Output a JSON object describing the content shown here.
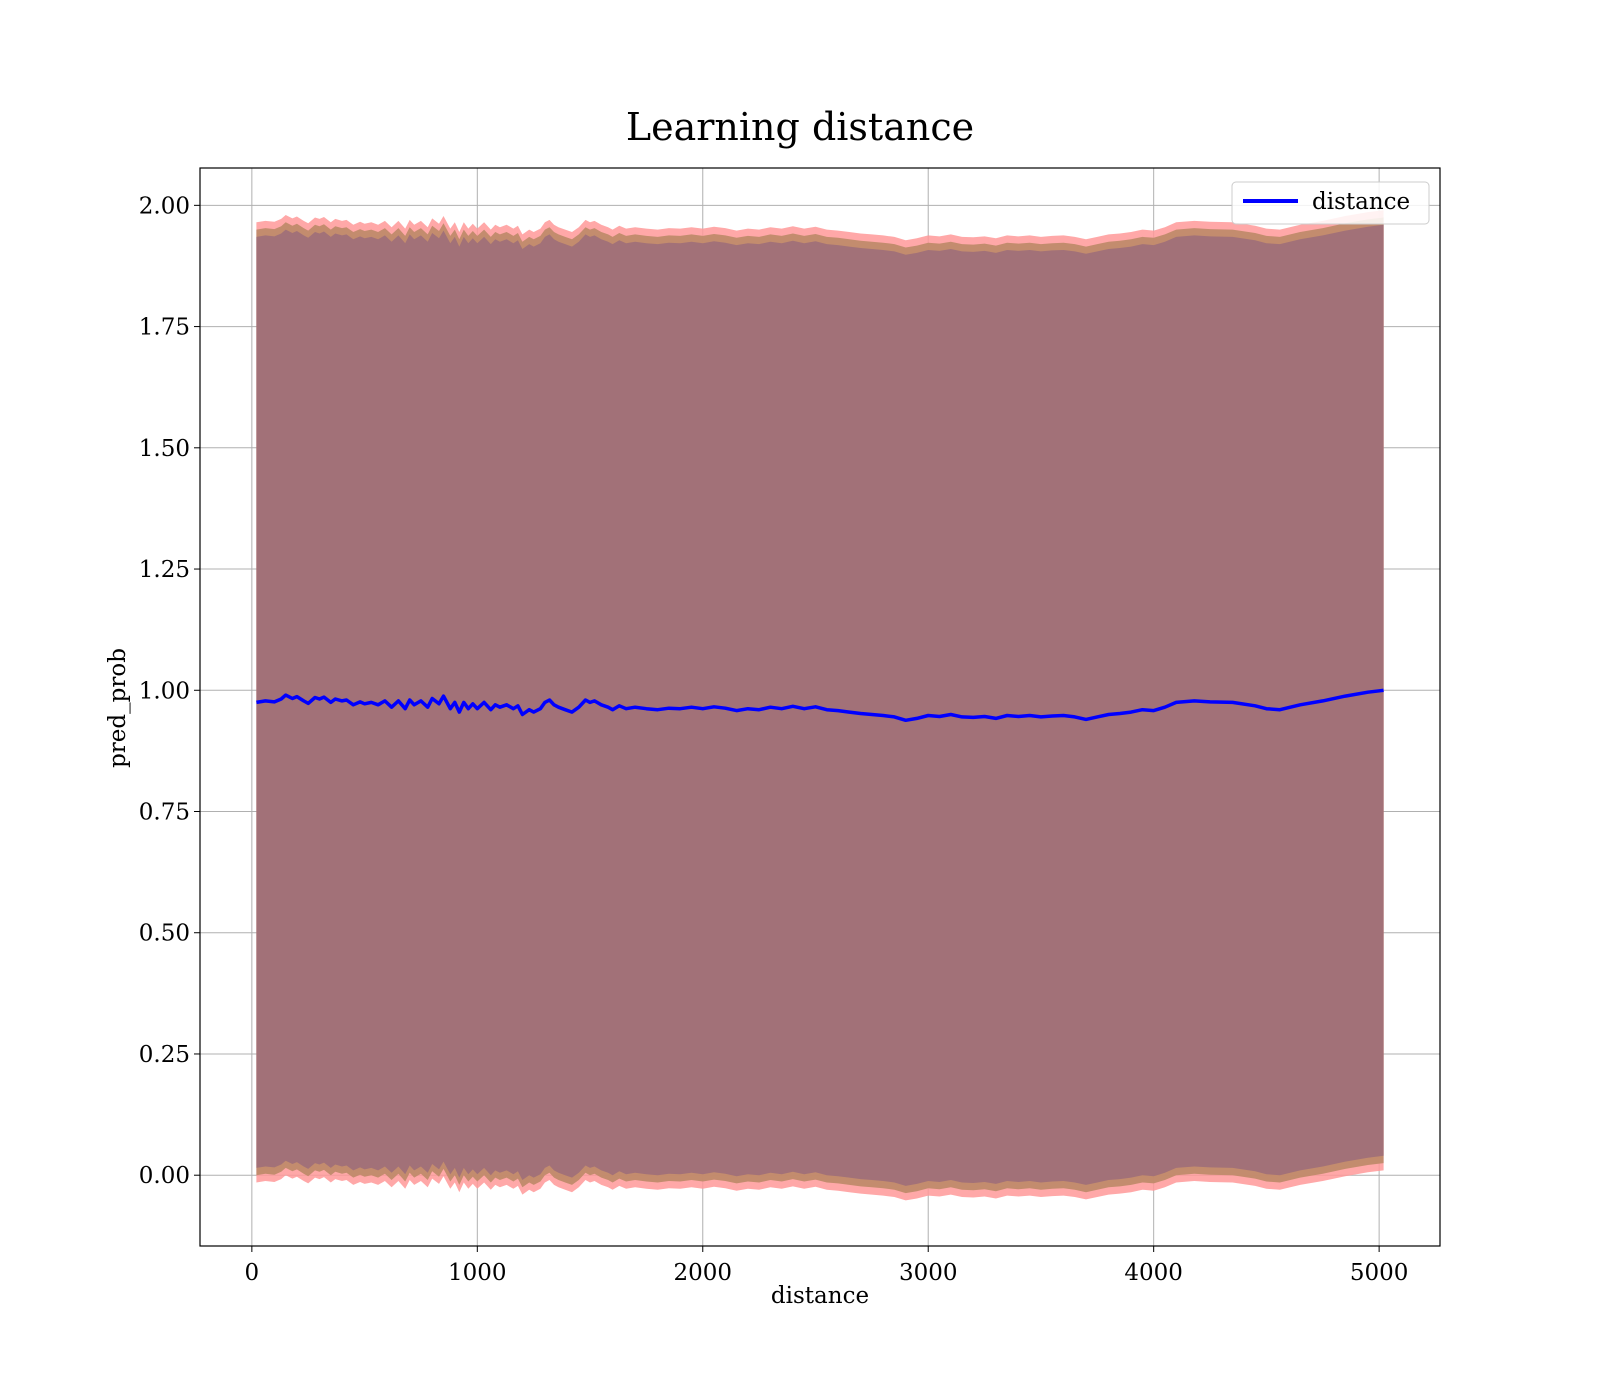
{
  "chart_data": {
    "type": "line",
    "title": "Learning distance",
    "xlabel": "distance",
    "ylabel": "pred_prob",
    "xlim": [
      -230,
      5270
    ],
    "ylim": [
      -0.146,
      2.077
    ],
    "xticks": [
      0,
      1000,
      2000,
      3000,
      4000,
      5000
    ],
    "xtick_labels": [
      "0",
      "1000",
      "2000",
      "3000",
      "4000",
      "5000"
    ],
    "yticks": [
      0.0,
      0.25,
      0.5,
      0.75,
      1.0,
      1.25,
      1.5,
      1.75,
      2.0
    ],
    "ytick_labels": [
      "0.00",
      "0.25",
      "0.50",
      "0.75",
      "1.00",
      "1.25",
      "1.50",
      "1.75",
      "2.00"
    ],
    "grid": true,
    "legend_position": "top-right",
    "colors": {
      "line": "#0000ff",
      "band_outer": "#ff9999",
      "band_mid": "#c08a6a",
      "band_inner": "#a27178",
      "grid": "#b0b0b0"
    },
    "series": [
      {
        "name": "distance",
        "x": [
          20,
          60,
          100,
          130,
          150,
          180,
          200,
          230,
          250,
          280,
          300,
          320,
          350,
          370,
          400,
          420,
          450,
          480,
          500,
          530,
          560,
          590,
          620,
          650,
          680,
          700,
          720,
          750,
          780,
          800,
          830,
          850,
          880,
          900,
          920,
          940,
          960,
          980,
          1000,
          1030,
          1060,
          1080,
          1100,
          1130,
          1160,
          1180,
          1200,
          1230,
          1250,
          1280,
          1300,
          1320,
          1340,
          1360,
          1390,
          1420,
          1450,
          1480,
          1500,
          1520,
          1550,
          1580,
          1600,
          1630,
          1660,
          1700,
          1750,
          1800,
          1850,
          1900,
          1950,
          2000,
          2050,
          2100,
          2150,
          2200,
          2250,
          2300,
          2350,
          2400,
          2450,
          2500,
          2550,
          2600,
          2650,
          2700,
          2750,
          2800,
          2850,
          2900,
          2950,
          3000,
          3050,
          3100,
          3150,
          3200,
          3250,
          3300,
          3350,
          3400,
          3450,
          3500,
          3550,
          3600,
          3650,
          3700,
          3750,
          3800,
          3850,
          3900,
          3950,
          4000,
          4050,
          4100,
          4180,
          4250,
          4350,
          4450,
          4500,
          4560,
          4650,
          4750,
          4850,
          4950,
          5020
        ],
        "y": [
          0.975,
          0.978,
          0.976,
          0.982,
          0.99,
          0.983,
          0.987,
          0.978,
          0.973,
          0.985,
          0.982,
          0.986,
          0.975,
          0.982,
          0.978,
          0.98,
          0.97,
          0.976,
          0.972,
          0.975,
          0.97,
          0.978,
          0.965,
          0.978,
          0.962,
          0.98,
          0.97,
          0.978,
          0.965,
          0.983,
          0.972,
          0.988,
          0.962,
          0.975,
          0.955,
          0.975,
          0.962,
          0.972,
          0.962,
          0.975,
          0.96,
          0.97,
          0.965,
          0.97,
          0.962,
          0.968,
          0.95,
          0.96,
          0.955,
          0.962,
          0.975,
          0.98,
          0.97,
          0.965,
          0.96,
          0.955,
          0.965,
          0.98,
          0.975,
          0.978,
          0.97,
          0.965,
          0.96,
          0.968,
          0.962,
          0.965,
          0.962,
          0.96,
          0.963,
          0.962,
          0.965,
          0.962,
          0.966,
          0.963,
          0.958,
          0.962,
          0.96,
          0.965,
          0.962,
          0.967,
          0.962,
          0.966,
          0.96,
          0.958,
          0.955,
          0.952,
          0.95,
          0.948,
          0.945,
          0.938,
          0.942,
          0.948,
          0.946,
          0.95,
          0.945,
          0.944,
          0.946,
          0.942,
          0.948,
          0.946,
          0.948,
          0.945,
          0.947,
          0.948,
          0.945,
          0.94,
          0.945,
          0.95,
          0.952,
          0.955,
          0.96,
          0.958,
          0.965,
          0.975,
          0.978,
          0.976,
          0.975,
          0.968,
          0.962,
          0.96,
          0.97,
          0.978,
          0.988,
          0.996,
          1.0
        ]
      }
    ],
    "band": {
      "inner_half_width": 0.96,
      "mid_half_width": 0.975,
      "outer_half_width": 0.99
    }
  }
}
